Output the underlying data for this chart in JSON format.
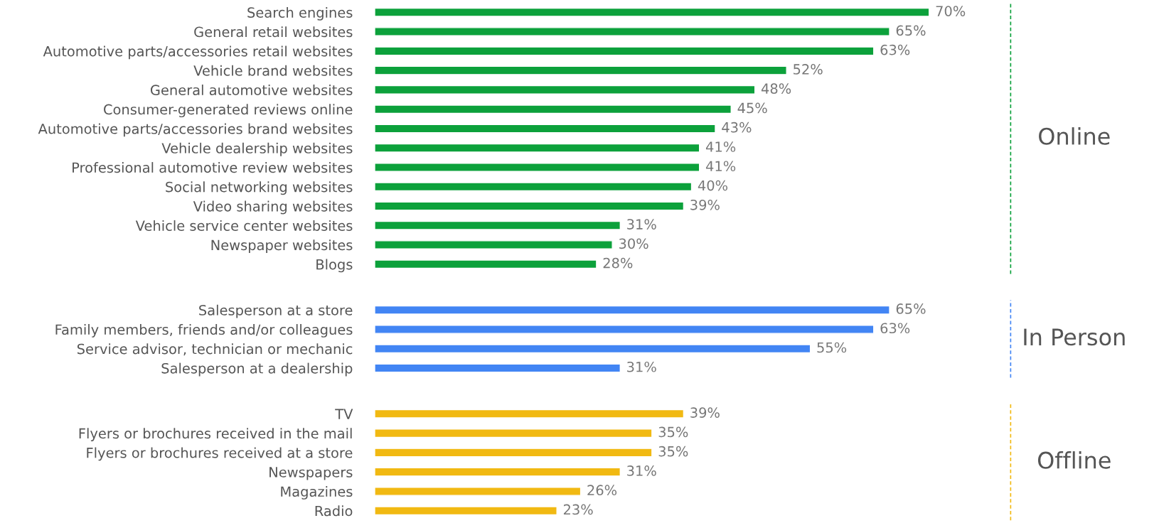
{
  "chart_data": [
    {
      "type": "bar",
      "orientation": "horizontal",
      "y2label": "Online",
      "color": "#0ca13b",
      "categories": [
        "Search engines",
        "General retail websites",
        "Automotive parts/accessories retail websites",
        "Vehicle brand websites",
        "General automotive websites",
        "Consumer-generated reviews online",
        "Automotive parts/accessories brand websites",
        "Vehicle dealership websites",
        "Professional automotive review websites",
        "Social networking websites",
        "Video sharing websites",
        "Vehicle service center websites",
        "Newspaper websites",
        "Blogs"
      ],
      "values": [
        70,
        65,
        63,
        52,
        48,
        45,
        43,
        41,
        41,
        40,
        39,
        31,
        30,
        28
      ],
      "value_labels": [
        "70%",
        "65%",
        "63%",
        "52%",
        "48%",
        "45%",
        "43%",
        "41%",
        "41%",
        "40%",
        "39%",
        "31%",
        "30%",
        "28%"
      ]
    },
    {
      "type": "bar",
      "orientation": "horizontal",
      "y2label": "In Person",
      "color": "#4285f4",
      "categories": [
        "Salesperson at a store",
        "Family members, friends and/or colleagues",
        "Service advisor, technician or mechanic",
        "Salesperson at a dealership"
      ],
      "values": [
        65,
        63,
        55,
        31
      ],
      "value_labels": [
        "65%",
        "63%",
        "55%",
        "31%"
      ]
    },
    {
      "type": "bar",
      "orientation": "horizontal",
      "y2label": "Offline",
      "color": "#f1b912",
      "categories": [
        "TV",
        "Flyers or brochures received in the mail",
        "Flyers or brochures received at a store",
        "Newspapers",
        "Magazines",
        "Radio"
      ],
      "values": [
        39,
        35,
        35,
        31,
        26,
        23
      ],
      "value_labels": [
        "39%",
        "35%",
        "35%",
        "31%",
        "26%",
        "23%"
      ]
    }
  ]
}
